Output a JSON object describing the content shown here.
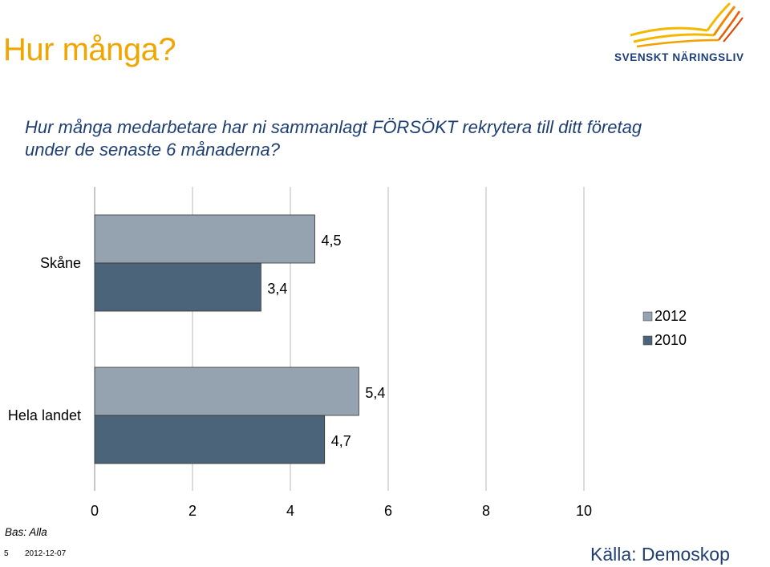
{
  "header": {
    "title": "Hur många?",
    "logo_text": "SVENSKT NÄRINGSLIV"
  },
  "question": "Hur många medarbetare har ni sammanlagt FÖRSÖKT rekrytera till ditt företag under de senaste 6 månaderna?",
  "chart_data": {
    "type": "bar",
    "orientation": "horizontal",
    "categories": [
      "Skåne",
      "Hela landet"
    ],
    "series": [
      {
        "name": "2012",
        "values": [
          4.5,
          5.4
        ],
        "color": "#95a3b0"
      },
      {
        "name": "2010",
        "values": [
          3.4,
          4.7
        ],
        "color": "#4b6479"
      }
    ],
    "value_labels": {
      "2012": [
        "4,5",
        "5,4"
      ],
      "2010": [
        "3,4",
        "4,7"
      ]
    },
    "xticks": [
      "0",
      "2",
      "4",
      "6",
      "8",
      "10"
    ],
    "xlim": [
      0,
      10
    ],
    "grid": true,
    "legend_position": "right"
  },
  "footer": {
    "base": "Bas: Alla",
    "page": "5",
    "date": "2012-12-07",
    "source": "Källa: Demoskop"
  }
}
